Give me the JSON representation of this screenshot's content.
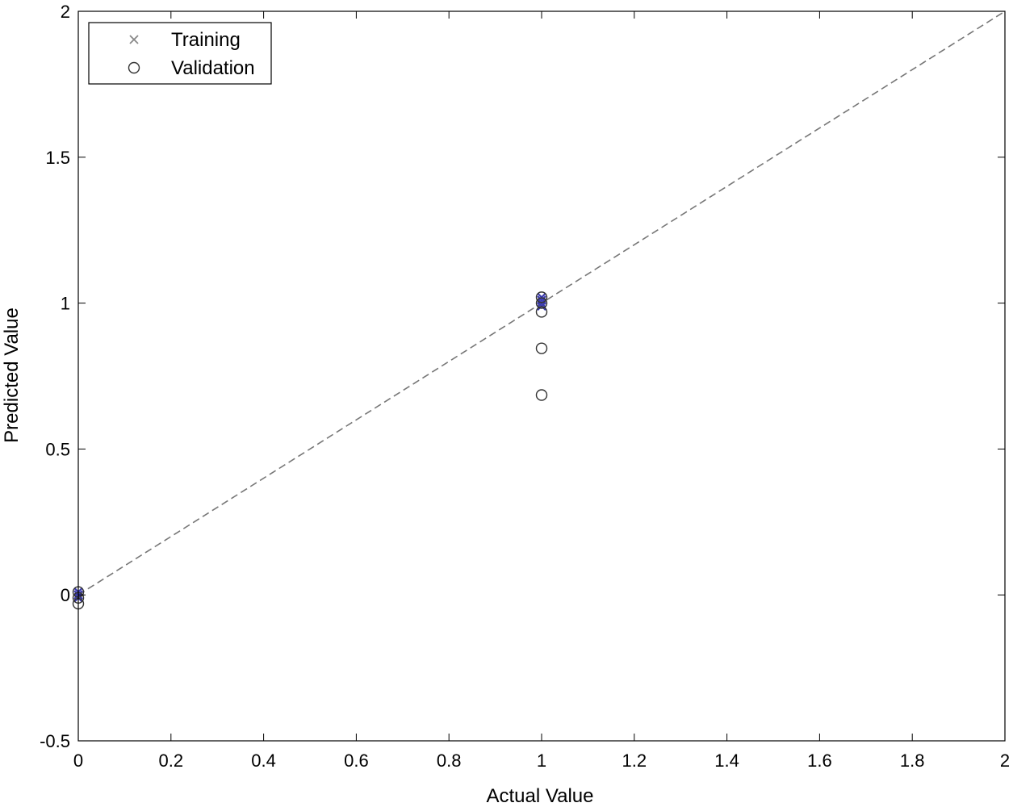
{
  "chart_data": {
    "type": "scatter",
    "xlabel": "Actual Value",
    "ylabel": "Predicted Value",
    "xlim": [
      0,
      2
    ],
    "ylim": [
      -0.5,
      2
    ],
    "xticks": [
      0,
      0.2,
      0.4,
      0.6,
      0.8,
      1,
      1.2,
      1.4,
      1.6,
      1.8,
      2
    ],
    "xtick_labels": [
      "0",
      "0.2",
      "0.4",
      "0.6",
      "0.8",
      "1",
      "1.2",
      "1.4",
      "1.6",
      "1.8",
      "2"
    ],
    "yticks": [
      -0.5,
      0,
      0.5,
      1,
      1.5,
      2
    ],
    "ytick_labels": [
      "-0.5",
      "0",
      "0.5",
      "1",
      "1.5",
      "2"
    ],
    "grid": false,
    "legend_position": "top-left",
    "reference_line": {
      "x": [
        0,
        2
      ],
      "y": [
        0,
        2
      ],
      "style": "dashed",
      "color": "#777777"
    },
    "series": [
      {
        "name": "Training",
        "marker": "x",
        "color": "#3b3bb0",
        "points": [
          {
            "x": 0,
            "y": 0.0
          },
          {
            "x": 0,
            "y": -0.01
          },
          {
            "x": 0,
            "y": 0.01
          },
          {
            "x": 1,
            "y": 1.0
          },
          {
            "x": 1,
            "y": 1.01
          },
          {
            "x": 1,
            "y": 0.99
          },
          {
            "x": 1,
            "y": 1.02
          }
        ]
      },
      {
        "name": "Validation",
        "marker": "circle",
        "color": "#333333",
        "points": [
          {
            "x": 0,
            "y": 0.01
          },
          {
            "x": 0,
            "y": -0.01
          },
          {
            "x": 0,
            "y": -0.03
          },
          {
            "x": 1,
            "y": 1.02
          },
          {
            "x": 1,
            "y": 1.0
          },
          {
            "x": 1,
            "y": 0.97
          },
          {
            "x": 1,
            "y": 0.845
          },
          {
            "x": 1,
            "y": 0.685
          }
        ]
      }
    ]
  }
}
